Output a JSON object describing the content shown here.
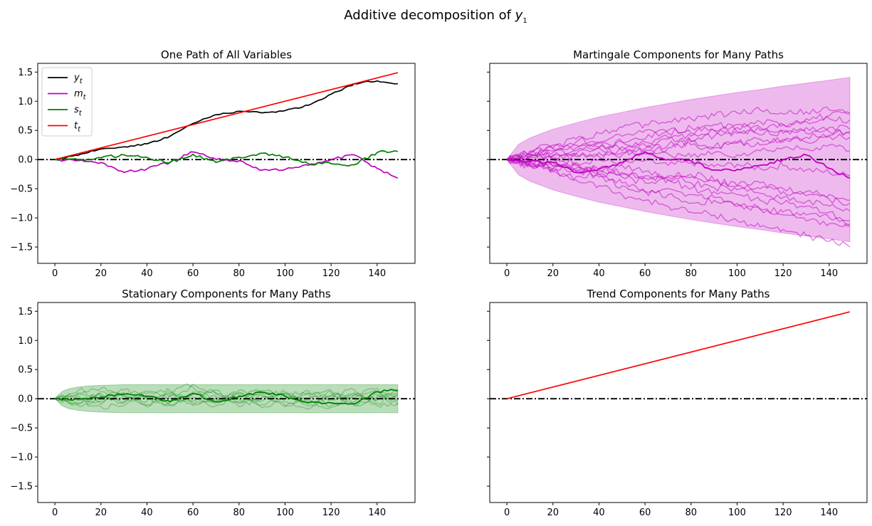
{
  "figure": {
    "title_prefix": "Additive decomposition of ",
    "title_var": "y",
    "title_sub": "1"
  },
  "colors": {
    "y": "#000000",
    "m": "#bf00bf",
    "s": "#008000",
    "t": "#ff0000",
    "zero_line": "#000000"
  },
  "chart_data": [
    {
      "type": "line",
      "title": "One Path of All Variables",
      "xlim": [
        -7.45,
        156.45
      ],
      "ylim": [
        -1.78,
        1.65
      ],
      "xticks": [
        0,
        20,
        40,
        60,
        80,
        100,
        120,
        140
      ],
      "yticks": [
        -1.5,
        -1.0,
        -0.5,
        0.0,
        0.5,
        1.0,
        1.5
      ],
      "legend": {
        "position": "top-left",
        "entries": [
          {
            "var": "y",
            "sub": "t",
            "series": "y"
          },
          {
            "var": "m",
            "sub": "t",
            "series": "m"
          },
          {
            "var": "s",
            "sub": "t",
            "series": "s"
          },
          {
            "var": "t",
            "sub": "t",
            "series": "t"
          }
        ]
      },
      "zero_line": true,
      "series": [
        {
          "key": "y",
          "x": [
            0,
            10,
            20,
            30,
            40,
            50,
            60,
            70,
            80,
            90,
            100,
            110,
            120,
            130,
            140,
            149
          ],
          "y": [
            0.0,
            0.07,
            0.18,
            0.22,
            0.27,
            0.4,
            0.62,
            0.77,
            0.83,
            0.8,
            0.84,
            0.93,
            1.12,
            1.3,
            1.35,
            1.3
          ]
        },
        {
          "key": "m",
          "x": [
            0,
            10,
            20,
            30,
            40,
            50,
            60,
            70,
            80,
            90,
            100,
            110,
            120,
            130,
            140,
            149
          ],
          "y": [
            0.0,
            -0.02,
            -0.05,
            -0.22,
            -0.16,
            -0.05,
            0.13,
            0.0,
            -0.02,
            -0.18,
            -0.17,
            -0.1,
            0.0,
            0.08,
            -0.15,
            -0.32
          ]
        },
        {
          "key": "s",
          "x": [
            0,
            10,
            20,
            30,
            40,
            50,
            60,
            70,
            80,
            90,
            100,
            110,
            120,
            130,
            140,
            149
          ],
          "y": [
            0.0,
            -0.01,
            0.03,
            0.08,
            0.04,
            -0.05,
            0.09,
            -0.05,
            0.04,
            0.11,
            0.04,
            -0.07,
            -0.07,
            -0.09,
            0.12,
            0.14
          ]
        },
        {
          "key": "t",
          "x": [
            0,
            149
          ],
          "y": [
            0.0,
            1.49
          ]
        }
      ]
    },
    {
      "type": "line",
      "title": "Martingale Components for Many Paths",
      "xlim": [
        -7.45,
        156.45
      ],
      "ylim": [
        -1.78,
        1.65
      ],
      "xticks": [
        0,
        20,
        40,
        60,
        80,
        100,
        120,
        140
      ],
      "yticks": [
        -1.5,
        -1.0,
        -0.5,
        0.0,
        0.5,
        1.0,
        1.5
      ],
      "band": {
        "x": [
          0,
          5,
          10,
          20,
          30,
          40,
          50,
          60,
          70,
          80,
          90,
          100,
          110,
          120,
          130,
          140,
          149
        ],
        "upper": [
          0.0,
          0.26,
          0.37,
          0.52,
          0.63,
          0.73,
          0.81,
          0.89,
          0.96,
          1.03,
          1.09,
          1.15,
          1.2,
          1.26,
          1.31,
          1.36,
          1.41
        ],
        "lower": [
          0.0,
          -0.26,
          -0.37,
          -0.52,
          -0.63,
          -0.73,
          -0.81,
          -0.89,
          -0.96,
          -1.03,
          -1.09,
          -1.15,
          -1.2,
          -1.26,
          -1.31,
          -1.36,
          -1.41
        ]
      },
      "zero_line": true,
      "highlight": {
        "x": [
          0,
          10,
          20,
          30,
          40,
          50,
          60,
          70,
          80,
          90,
          100,
          110,
          120,
          130,
          140,
          149
        ],
        "y": [
          0.0,
          -0.02,
          -0.05,
          -0.22,
          -0.16,
          -0.05,
          0.13,
          0.0,
          -0.02,
          -0.18,
          -0.17,
          -0.1,
          0.0,
          0.08,
          -0.15,
          -0.32
        ]
      },
      "paths_x": [
        0,
        10,
        20,
        30,
        40,
        50,
        60,
        70,
        80,
        90,
        100,
        110,
        120,
        130,
        140,
        149
      ],
      "paths": [
        [
          0,
          0.15,
          0.25,
          0.3,
          0.45,
          0.55,
          0.6,
          0.65,
          0.7,
          0.75,
          0.8,
          0.85,
          0.78,
          0.82,
          0.85,
          0.78
        ],
        [
          0,
          -0.1,
          -0.2,
          -0.35,
          -0.45,
          -0.6,
          -0.7,
          -0.8,
          -0.9,
          -0.95,
          -1.05,
          -1.15,
          -1.2,
          -1.3,
          -1.4,
          -1.5
        ],
        [
          0,
          0.08,
          0.15,
          0.1,
          0.2,
          0.3,
          0.25,
          0.35,
          0.4,
          0.5,
          0.45,
          0.55,
          0.6,
          0.65,
          0.7,
          0.68
        ],
        [
          0,
          -0.05,
          -0.15,
          -0.1,
          -0.25,
          -0.3,
          -0.4,
          -0.35,
          -0.5,
          -0.55,
          -0.6,
          -0.7,
          -0.75,
          -0.8,
          -0.9,
          -1.05
        ],
        [
          0,
          0.12,
          0.2,
          0.35,
          0.3,
          0.4,
          0.5,
          0.45,
          0.55,
          0.5,
          0.6,
          0.5,
          0.45,
          0.55,
          0.48,
          0.45
        ],
        [
          0,
          -0.12,
          -0.2,
          -0.3,
          -0.25,
          -0.4,
          -0.55,
          -0.6,
          -0.75,
          -0.7,
          -0.8,
          -0.85,
          -0.95,
          -1.05,
          -1.1,
          -1.15
        ],
        [
          0,
          0.05,
          0.0,
          0.1,
          0.05,
          0.15,
          0.1,
          0.2,
          0.25,
          0.2,
          0.3,
          0.25,
          0.35,
          0.3,
          0.4,
          0.38
        ],
        [
          0,
          -0.08,
          -0.05,
          -0.15,
          -0.2,
          -0.1,
          -0.2,
          -0.3,
          -0.25,
          -0.35,
          -0.45,
          -0.4,
          -0.5,
          -0.55,
          -0.6,
          -0.7
        ],
        [
          0,
          0.1,
          0.18,
          0.25,
          0.22,
          0.3,
          0.35,
          0.5,
          0.45,
          0.6,
          0.55,
          0.65,
          0.6,
          0.7,
          0.75,
          0.8
        ],
        [
          0,
          -0.02,
          -0.1,
          -0.2,
          -0.3,
          -0.45,
          -0.55,
          -0.5,
          -0.6,
          -0.65,
          -0.75,
          -0.85,
          -0.9,
          -0.95,
          -1.0,
          -1.1
        ],
        [
          0,
          0.03,
          0.08,
          0.05,
          0.12,
          0.08,
          0.15,
          0.1,
          0.05,
          0.12,
          0.08,
          0.15,
          0.2,
          0.18,
          0.25,
          0.15
        ],
        [
          0,
          -0.04,
          0.02,
          -0.05,
          0.0,
          -0.08,
          -0.02,
          -0.1,
          -0.05,
          -0.12,
          -0.08,
          -0.15,
          -0.1,
          -0.18,
          -0.22,
          -0.28
        ],
        [
          0,
          0.06,
          0.12,
          0.2,
          0.28,
          0.22,
          0.3,
          0.38,
          0.32,
          0.4,
          0.48,
          0.42,
          0.5,
          0.45,
          0.55,
          0.52
        ],
        [
          0,
          -0.06,
          -0.12,
          -0.18,
          -0.15,
          -0.22,
          -0.28,
          -0.35,
          -0.3,
          -0.38,
          -0.45,
          -0.5,
          -0.55,
          -0.62,
          -0.68,
          -0.75
        ],
        [
          0,
          0.09,
          0.05,
          0.15,
          0.2,
          0.12,
          0.18,
          0.25,
          0.3,
          0.22,
          0.28,
          0.35,
          0.3,
          0.38,
          0.42,
          0.48
        ],
        [
          0,
          -0.09,
          -0.15,
          -0.08,
          -0.18,
          -0.25,
          -0.32,
          -0.28,
          -0.4,
          -0.48,
          -0.52,
          -0.58,
          -0.65,
          -0.72,
          -0.8,
          -0.88
        ]
      ]
    },
    {
      "type": "line",
      "title": "Stationary Components for Many Paths",
      "xlim": [
        -7.45,
        156.45
      ],
      "ylim": [
        -1.78,
        1.65
      ],
      "xticks": [
        0,
        20,
        40,
        60,
        80,
        100,
        120,
        140
      ],
      "yticks": [
        -1.5,
        -1.0,
        -0.5,
        0.0,
        0.5,
        1.0,
        1.5
      ],
      "band": {
        "x": [
          0,
          3,
          6,
          10,
          15,
          20,
          30,
          40,
          60,
          80,
          100,
          120,
          140,
          149
        ],
        "upper": [
          0.0,
          0.12,
          0.17,
          0.2,
          0.22,
          0.23,
          0.24,
          0.24,
          0.24,
          0.24,
          0.24,
          0.24,
          0.24,
          0.24
        ],
        "lower": [
          0.0,
          -0.12,
          -0.17,
          -0.2,
          -0.22,
          -0.23,
          -0.24,
          -0.24,
          -0.24,
          -0.24,
          -0.24,
          -0.24,
          -0.24,
          -0.24
        ]
      },
      "zero_line": true,
      "highlight": {
        "x": [
          0,
          10,
          20,
          30,
          40,
          50,
          60,
          70,
          80,
          90,
          100,
          110,
          120,
          130,
          140,
          149
        ],
        "y": [
          0.0,
          -0.01,
          0.03,
          0.08,
          0.04,
          -0.05,
          0.09,
          -0.05,
          0.04,
          0.11,
          0.04,
          -0.07,
          -0.07,
          -0.09,
          0.12,
          0.14
        ]
      },
      "paths_x": [
        0,
        10,
        20,
        30,
        40,
        50,
        60,
        70,
        80,
        90,
        100,
        110,
        120,
        130,
        140,
        149
      ],
      "paths": [
        [
          0,
          0.1,
          0.05,
          -0.08,
          0.12,
          0.03,
          0.2,
          -0.05,
          0.08,
          -0.1,
          0.06,
          0.14,
          -0.02,
          0.1,
          -0.08,
          0.05
        ],
        [
          0,
          -0.08,
          0.12,
          0.04,
          -0.1,
          0.08,
          -0.04,
          0.15,
          -0.06,
          0.09,
          -0.12,
          0.02,
          0.11,
          -0.05,
          0.07,
          -0.1
        ],
        [
          0,
          0.05,
          -0.1,
          0.15,
          0.02,
          -0.12,
          0.07,
          0.1,
          -0.14,
          0.03,
          0.12,
          -0.08,
          0.05,
          0.15,
          -0.03,
          0.08
        ],
        [
          0,
          -0.12,
          0.02,
          -0.05,
          0.09,
          0.14,
          -0.08,
          0.04,
          0.11,
          -0.15,
          0.0,
          0.09,
          -0.12,
          0.02,
          0.13,
          -0.04
        ],
        [
          0,
          0.14,
          0.18,
          0.06,
          -0.04,
          0.1,
          0.25,
          0.08,
          -0.02,
          0.12,
          -0.05,
          -0.18,
          0.06,
          -0.1,
          0.04,
          0.12
        ],
        [
          0,
          -0.03,
          -0.14,
          -0.12,
          0.06,
          -0.06,
          0.02,
          -0.12,
          0.06,
          0.14,
          0.08,
          -0.04,
          -0.15,
          0.08,
          -0.12,
          -0.08
        ],
        [
          0,
          0.08,
          -0.04,
          0.1,
          -0.14,
          0.06,
          -0.12,
          0.02,
          -0.08,
          0.05,
          -0.14,
          0.1,
          0.14,
          -0.12,
          0.02,
          0.1
        ],
        [
          0,
          -0.1,
          0.08,
          -0.02,
          0.04,
          -0.1,
          0.12,
          -0.08,
          0.15,
          -0.04,
          0.1,
          -0.12,
          0.0,
          0.06,
          0.18,
          -0.02
        ]
      ]
    },
    {
      "type": "line",
      "title": "Trend Components for Many Paths",
      "xlim": [
        -7.45,
        156.45
      ],
      "ylim": [
        -1.78,
        1.65
      ],
      "xticks": [
        0,
        20,
        40,
        60,
        80,
        100,
        120,
        140
      ],
      "yticks": [
        -1.5,
        -1.0,
        -0.5,
        0.0,
        0.5,
        1.0,
        1.5
      ],
      "zero_line": true,
      "series": [
        {
          "key": "t",
          "x": [
            0,
            149
          ],
          "y": [
            0.0,
            1.49
          ]
        }
      ]
    }
  ]
}
